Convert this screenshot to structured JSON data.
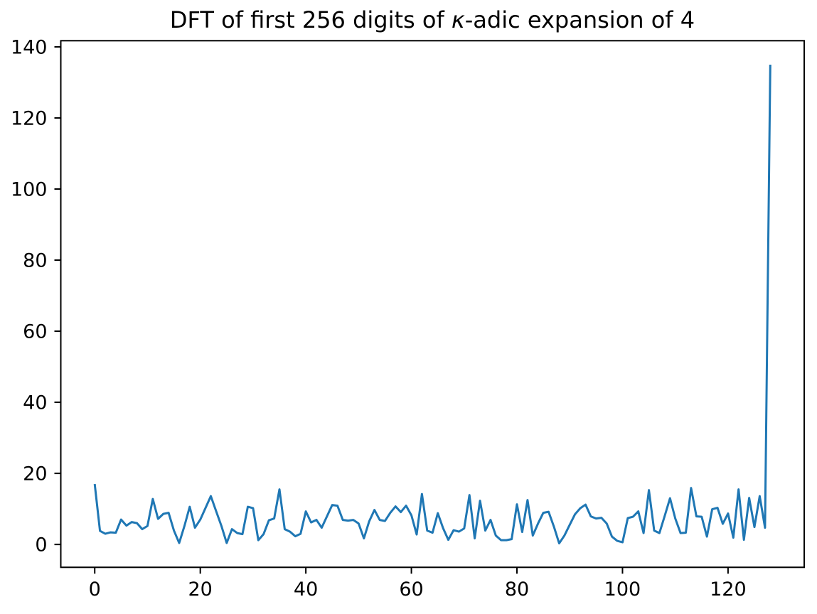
{
  "chart_data": {
    "type": "line",
    "title": "DFT of first 256 digits of κ-adic expansion of 4",
    "title_parts": {
      "prefix": "DFT of first 256 digits of ",
      "kappa": "κ",
      "suffix": "-adic expansion of 4"
    },
    "xlabel": "",
    "ylabel": "",
    "x_start": 0,
    "x_step": 1,
    "values": [
      17.0,
      3.8,
      3.0,
      3.4,
      3.3,
      7.0,
      5.3,
      6.3,
      6.0,
      4.3,
      5.2,
      12.8,
      7.2,
      8.6,
      8.9,
      3.9,
      0.4,
      5.2,
      10.6,
      4.7,
      7.0,
      10.3,
      13.6,
      9.4,
      5.2,
      0.4,
      4.3,
      3.2,
      2.9,
      10.6,
      10.2,
      1.2,
      2.9,
      6.8,
      7.3,
      15.5,
      4.3,
      3.6,
      2.3,
      3.0,
      9.3,
      6.2,
      6.9,
      4.7,
      7.9,
      11.1,
      10.9,
      6.9,
      6.7,
      6.9,
      5.9,
      1.7,
      6.5,
      9.7,
      6.9,
      6.6,
      8.9,
      10.7,
      9.1,
      10.9,
      8.2,
      2.8,
      14.2,
      3.9,
      3.3,
      8.8,
      4.6,
      1.3,
      4.0,
      3.6,
      4.5,
      13.9,
      1.7,
      12.3,
      3.9,
      6.9,
      2.5,
      1.2,
      1.2,
      1.5,
      11.3,
      3.5,
      12.5,
      2.5,
      5.9,
      8.9,
      9.2,
      5.0,
      0.3,
      2.5,
      5.5,
      8.5,
      10.2,
      11.2,
      7.9,
      7.3,
      7.5,
      5.9,
      2.2,
      1.0,
      0.6,
      7.4,
      7.8,
      9.3,
      3.2,
      15.3,
      3.9,
      3.2,
      8.0,
      13.0,
      7.3,
      3.2,
      3.3,
      15.9,
      7.9,
      7.8,
      2.2,
      9.9,
      10.3,
      5.8,
      8.7,
      1.9,
      15.5,
      1.3,
      13.1,
      4.9,
      13.6,
      4.7,
      135.0
    ],
    "xticks": [
      0,
      20,
      40,
      60,
      80,
      100,
      120
    ],
    "yticks": [
      0,
      20,
      40,
      60,
      80,
      100,
      120,
      140
    ],
    "xlim": [
      -6.43,
      134.43
    ],
    "ylim": [
      -6.43,
      141.73
    ],
    "grid": false,
    "legend": "none",
    "line_color": "#1f77b4",
    "spine_color": "#000000",
    "text_color": "#000000",
    "background_color": "#ffffff"
  }
}
